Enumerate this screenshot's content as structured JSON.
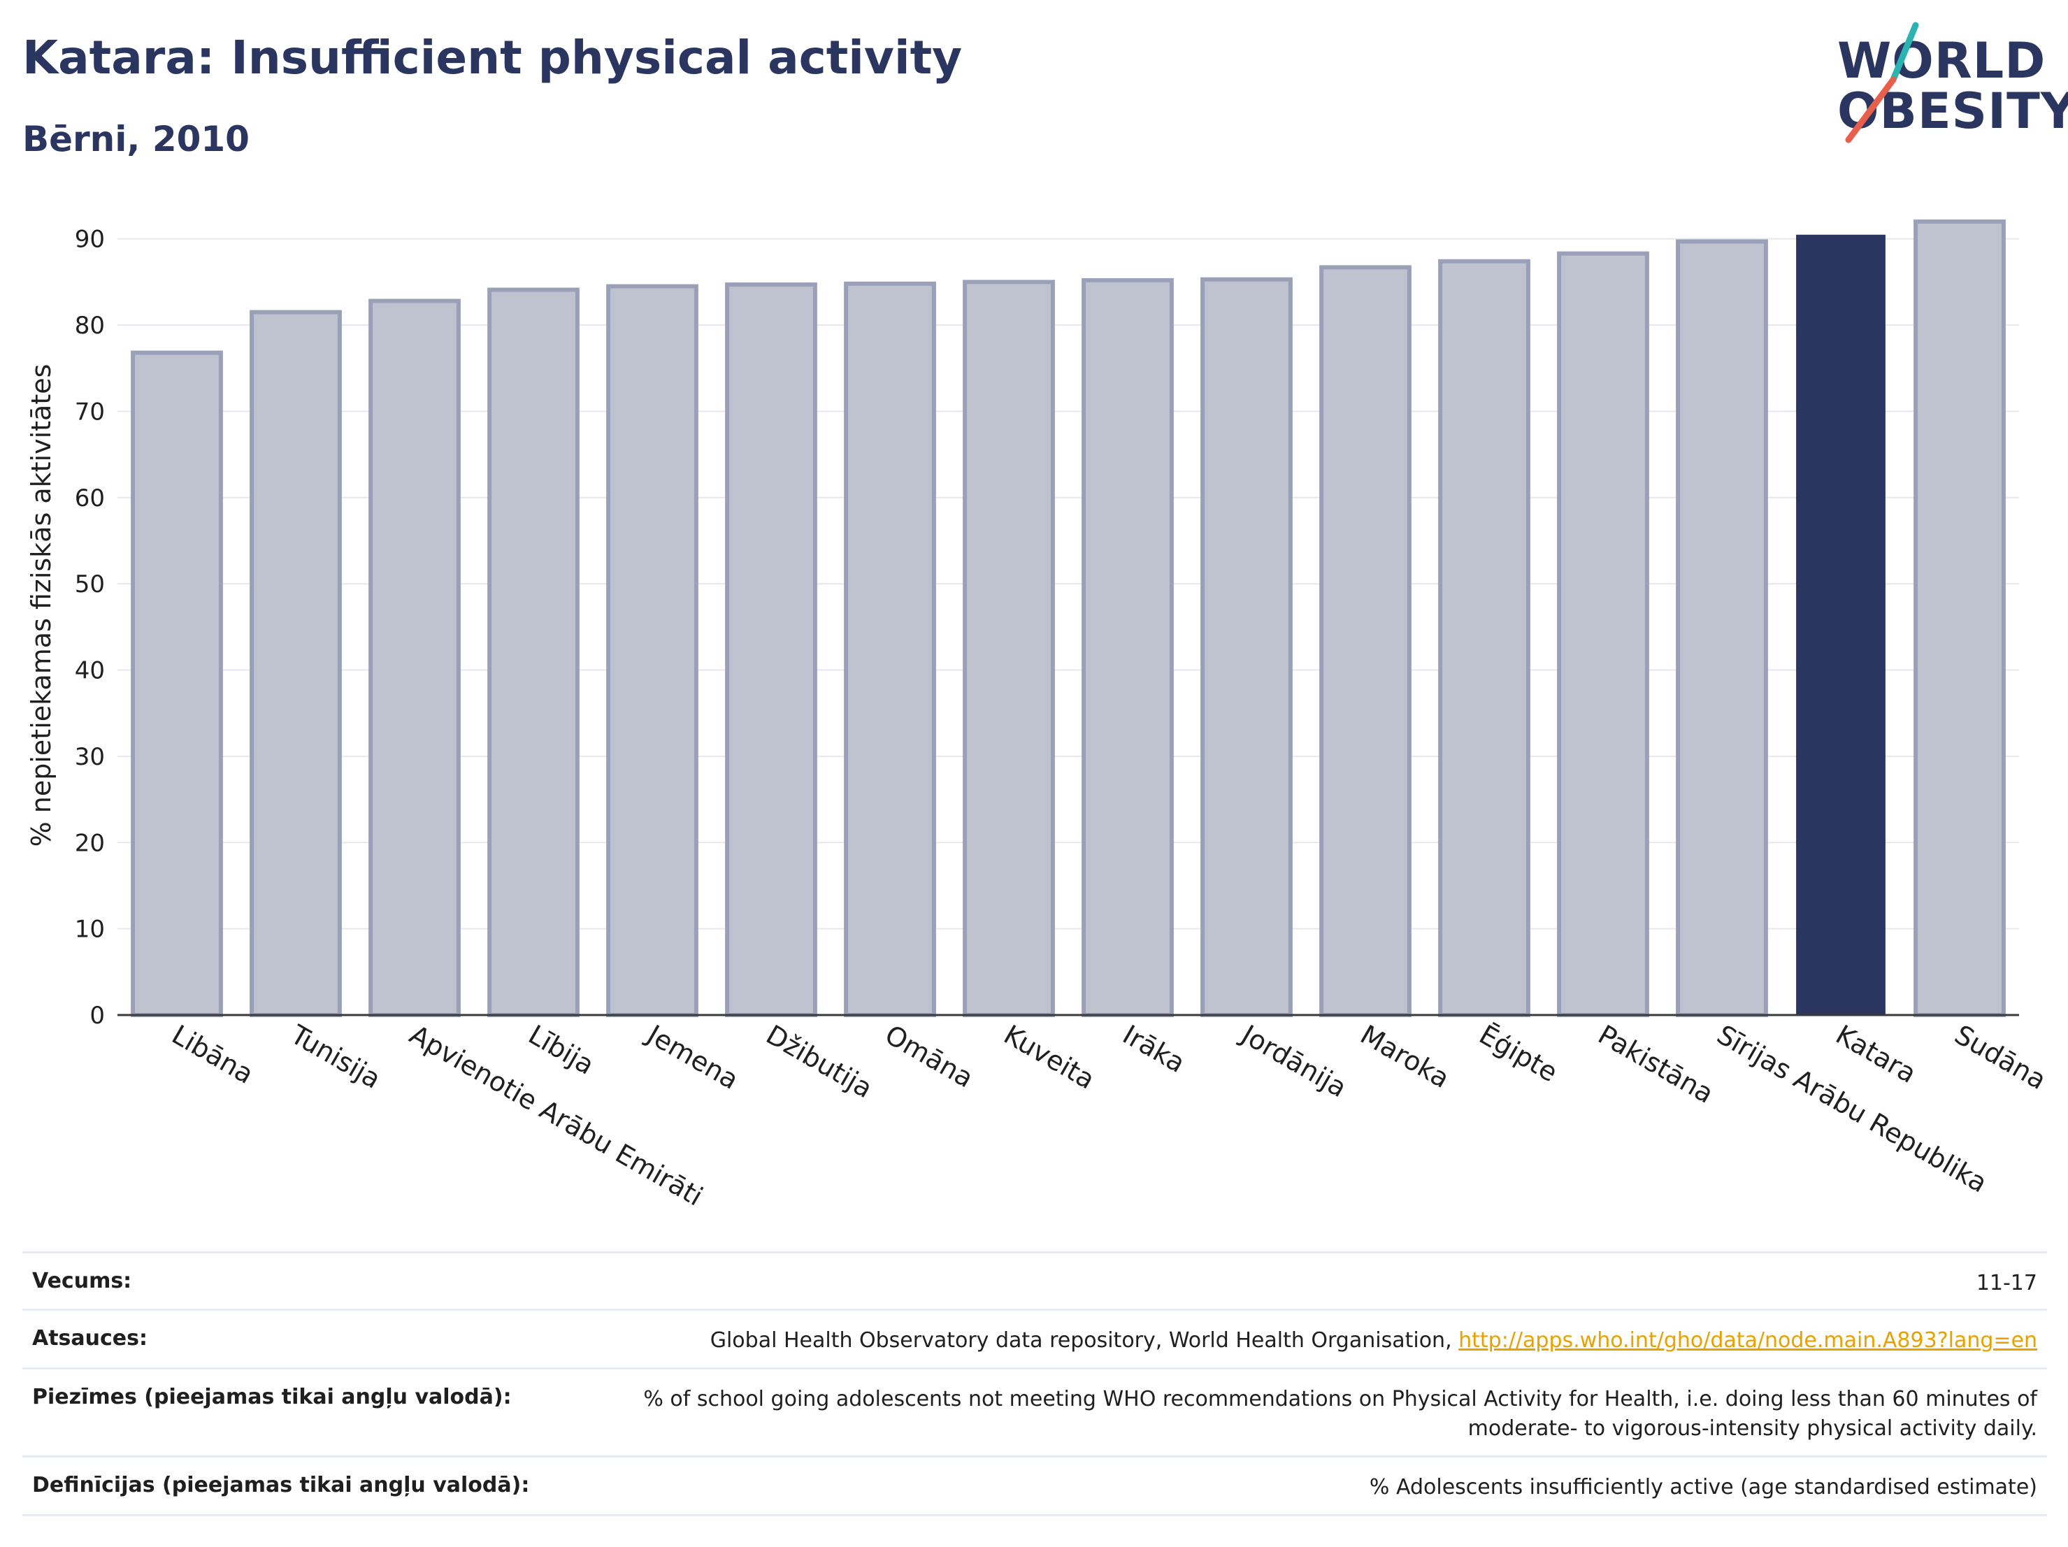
{
  "header": {
    "title": "Katara: Insufficient physical activity",
    "subtitle": "Bērni, 2010"
  },
  "logo": {
    "line1": "WORLD",
    "line2": "OBESITY",
    "slash_color_top": "#2ab3b1",
    "slash_color_bottom": "#e8604c"
  },
  "chart_data": {
    "type": "bar",
    "ylabel": "% nepietiekamas fiziskās aktivitātes",
    "ylim": [
      0,
      95
    ],
    "yticks": [
      0,
      10,
      20,
      30,
      40,
      50,
      60,
      70,
      80,
      90
    ],
    "grid": true,
    "categories": [
      "Libāna",
      "Tunisija",
      "Apvienotie Arābu Emirāti",
      "Lībija",
      "Jemena",
      "Džibutija",
      "Omāna",
      "Kuveita",
      "Irāka",
      "Jordānija",
      "Maroka",
      "Ēģipte",
      "Pakistāna",
      "Sīrijas Arābu Republika",
      "Katara",
      "Sudāna"
    ],
    "values": [
      76.8,
      81.5,
      82.8,
      84.1,
      84.5,
      84.7,
      84.8,
      85.0,
      85.2,
      85.3,
      86.7,
      87.4,
      88.3,
      89.7,
      90.4,
      92.0
    ],
    "highlight": "Katara",
    "colors": {
      "bar_fill": "#bfc2cf",
      "bar_stroke": "#9aa0b8",
      "highlight_fill": "#2a3560"
    }
  },
  "meta": {
    "age_label": "Vecums:",
    "age_value": "11-17",
    "sources_label": "Atsauces:",
    "sources_text": "Global Health Observatory data repository, World Health Organisation, ",
    "sources_link": "http://apps.who.int/gho/data/node.main.A893?lang=en",
    "notes_label": "Piezīmes (pieejamas tikai angļu valodā):",
    "notes_line1": "% of school going adolescents not meeting WHO recommendations on Physical Activity for Health, i.e. doing less than 60 minutes of",
    "notes_line2": "moderate- to vigorous-intensity physical activity daily.",
    "definitions_label": "Definīcijas (pieejamas tikai angļu valodā):",
    "definitions_value": "% Adolescents insufficiently active (age standardised estimate)"
  }
}
